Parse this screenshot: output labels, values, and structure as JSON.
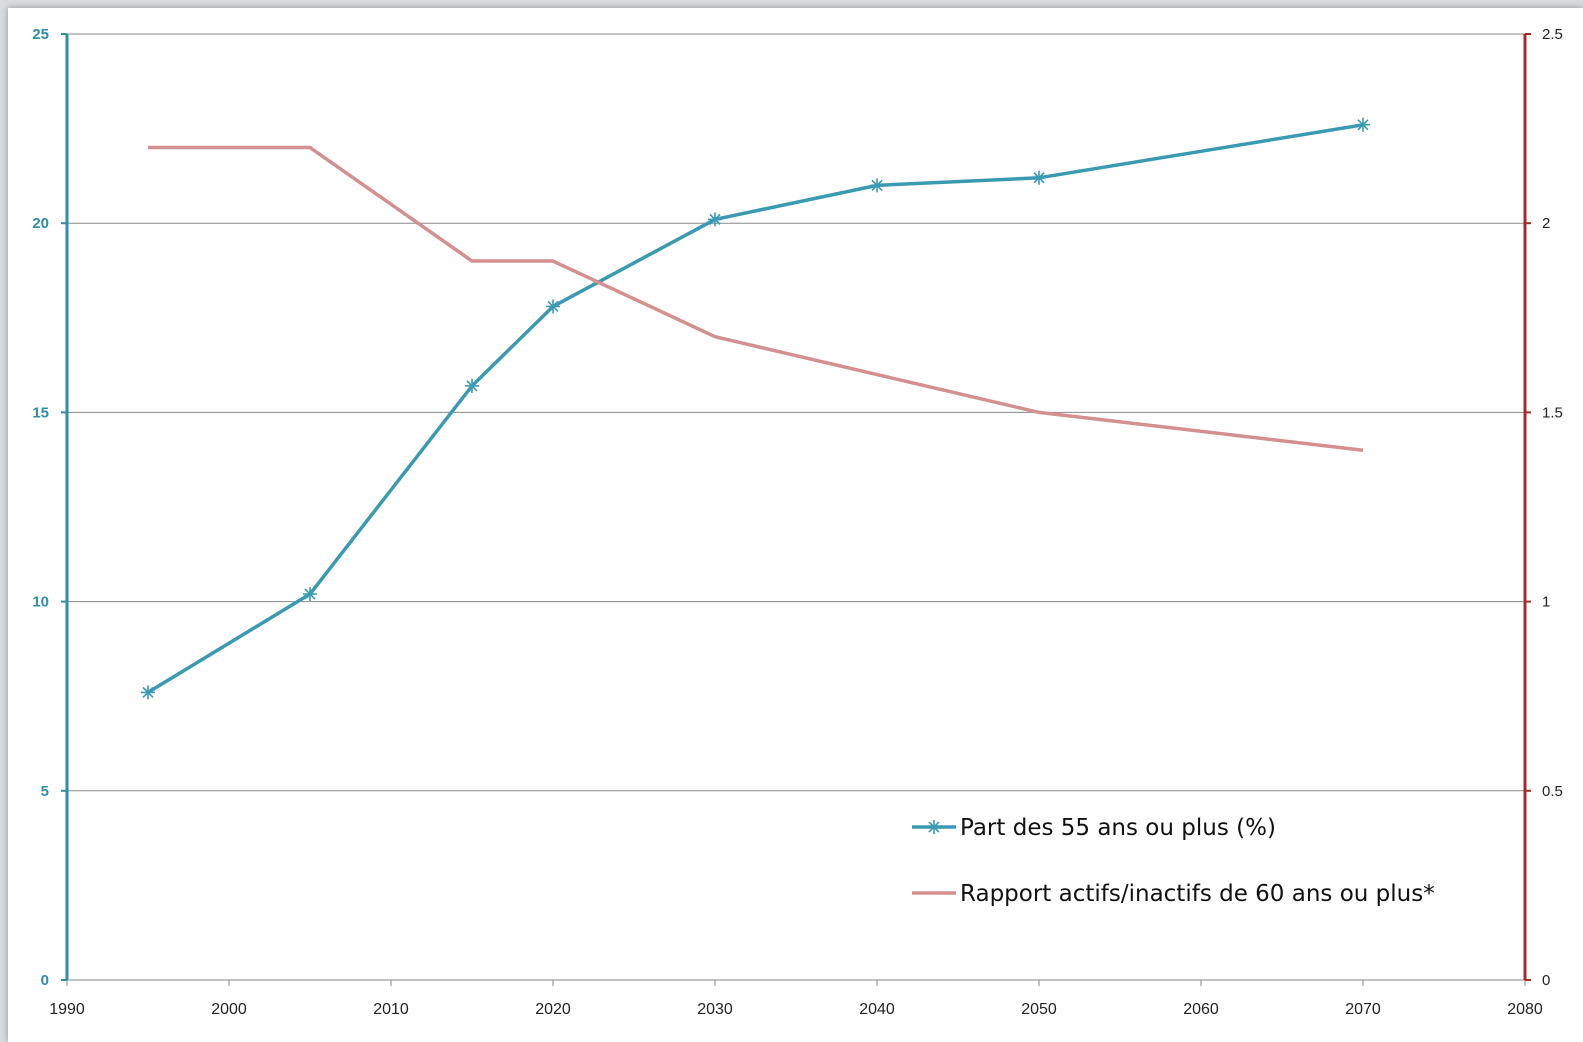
{
  "colors": {
    "series1": "#3a9ab2",
    "series2": "#d48f8f",
    "left_axis": "#2f8ea8",
    "right_axis": "#a52a2a",
    "grid": "#8a8a8a"
  },
  "chart_data": {
    "type": "line",
    "title": "",
    "xlabel": "",
    "ylabel": "",
    "y2label": "",
    "grid": true,
    "legend_position": "bottom-right",
    "xlim": [
      1990,
      2080
    ],
    "ylim": [
      0,
      25
    ],
    "y2lim": [
      0,
      2.5
    ],
    "x_ticks": [
      "1990",
      "2000",
      "2010",
      "2020",
      "2030",
      "2040",
      "2050",
      "2060",
      "2070",
      "2080"
    ],
    "y_ticks": [
      "0",
      "5",
      "10",
      "15",
      "20",
      "25"
    ],
    "y2_ticks": [
      "0",
      "0.5",
      "1",
      "1.5",
      "2",
      "2.5"
    ],
    "series": [
      {
        "name": "Part des 55 ans ou plus (%)",
        "axis": "left",
        "marker": "asterisk",
        "x": [
          1995,
          2005,
          2015,
          2020,
          2030,
          2040,
          2050,
          2070
        ],
        "values": [
          7.6,
          10.2,
          15.7,
          17.8,
          20.1,
          21.0,
          21.2,
          22.6
        ]
      },
      {
        "name": "Rapport actifs/inactifs de 60 ans ou plus*",
        "axis": "right",
        "marker": "none",
        "x": [
          1995,
          2005,
          2015,
          2020,
          2030,
          2040,
          2050,
          2070
        ],
        "values": [
          2.2,
          2.2,
          1.9,
          1.9,
          1.7,
          1.6,
          1.5,
          1.4
        ]
      }
    ]
  }
}
